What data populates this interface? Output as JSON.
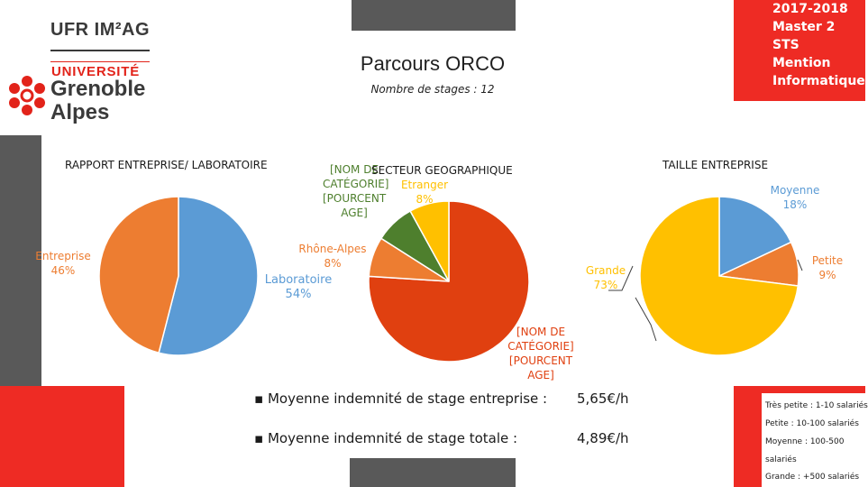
{
  "logo": {
    "line1": "UFR IM²AG",
    "line2": "UNIVERSITÉ",
    "line3": "Grenoble",
    "line4": "Alpes"
  },
  "header": {
    "title": "Parcours ORCO",
    "subtitle": "Nombre de stages : 12",
    "badge_lines": [
      "2017-2018",
      "Master 2 STS",
      "Mention",
      "Informatique"
    ]
  },
  "chart_data": [
    {
      "type": "pie",
      "title": "RAPPORT ENTREPRISE/ LABORATOIRE",
      "slices": [
        {
          "name": "Laboratoire",
          "value": 54,
          "label": "54%",
          "color": "#5b9bd5"
        },
        {
          "name": "Entreprise",
          "value": 46,
          "label": "46%",
          "color": "#ed7d31"
        }
      ]
    },
    {
      "type": "pie",
      "title": "SECTEUR GEOGRAPHIQUE",
      "slices": [
        {
          "name": "[NOM DE CATÉGORIE]",
          "value": 76,
          "label": "[POURCENTAGE]",
          "color": "#e04010"
        },
        {
          "name": "Rhône-Alpes",
          "value": 8,
          "label": "8%",
          "color": "#ed7d31"
        },
        {
          "name": "[NOM DE CATÉGORIE]",
          "value": 8,
          "label": "[POURCENTAGE]",
          "color": "#4e7f2d"
        },
        {
          "name": "Etranger",
          "value": 8,
          "label": "8%",
          "color": "#ffc000"
        }
      ]
    },
    {
      "type": "pie",
      "title": "TAILLE ENTREPRISE",
      "slices": [
        {
          "name": "Moyenne",
          "value": 18,
          "label": "18%",
          "color": "#5b9bd5"
        },
        {
          "name": "Petite",
          "value": 9,
          "label": "9%",
          "color": "#ed7d31"
        },
        {
          "name": "Grande",
          "value": 73,
          "label": "73%",
          "color": "#ffc000"
        }
      ]
    }
  ],
  "labels": {
    "geo_top_part1": "[NOM DE",
    "geo_top_part2": "CATÉGORIE]",
    "geo_top_part3": "[POURCENT",
    "geo_top_part4": "AGE]",
    "geo_bottom_1": "[NOM DE",
    "geo_bottom_2": "CATÉGORIE]",
    "geo_bottom_3": "[POURCENT",
    "geo_bottom_4": "AGE]"
  },
  "stats": [
    {
      "label": "Moyenne indemnité de stage entreprise :",
      "value": "5,65€/h"
    },
    {
      "label": "Moyenne indemnité de stage totale :",
      "value": "4,89€/h"
    }
  ],
  "size_legend": [
    "Très petite : 1-10 salariés",
    "Petite : 10-100 salariés",
    "Moyenne : 100-500",
    "salariés",
    "Grande : +500 salariés"
  ]
}
